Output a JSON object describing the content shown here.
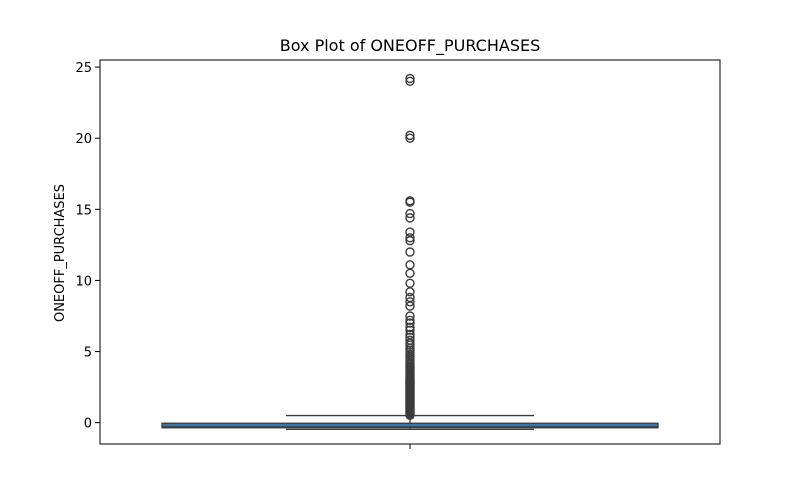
{
  "chart_data": {
    "type": "box",
    "title": "Box Plot of ONEOFF_PURCHASES",
    "xlabel": "",
    "ylabel": "ONEOFF_PURCHASES",
    "ylim": [
      -1.5,
      25.5
    ],
    "yticks": [
      0,
      5,
      10,
      15,
      20,
      25
    ],
    "grid": false,
    "box": {
      "q1": -0.36,
      "median": -0.3,
      "q3": -0.04,
      "whisker_low": -0.47,
      "whisker_high": 0.5,
      "fill_color": "#3a75a8",
      "edge_color": "#3c3c3c"
    },
    "outliers": [
      0.52,
      0.58,
      0.64,
      0.7,
      0.76,
      0.82,
      0.88,
      0.94,
      1.0,
      1.06,
      1.12,
      1.18,
      1.24,
      1.3,
      1.36,
      1.42,
      1.48,
      1.54,
      1.6,
      1.66,
      1.72,
      1.78,
      1.84,
      1.9,
      1.96,
      2.02,
      2.08,
      2.14,
      2.2,
      2.26,
      2.32,
      2.38,
      2.44,
      2.5,
      2.56,
      2.62,
      2.68,
      2.74,
      2.8,
      2.86,
      2.92,
      2.98,
      3.04,
      3.1,
      3.2,
      3.3,
      3.4,
      3.5,
      3.6,
      3.7,
      3.8,
      3.9,
      4.0,
      4.1,
      4.2,
      4.35,
      4.5,
      4.65,
      4.8,
      4.95,
      5.1,
      5.25,
      5.45,
      5.6,
      5.8,
      6.0,
      6.2,
      6.5,
      6.7,
      7.0,
      7.2,
      7.5,
      8.2,
      8.5,
      8.8,
      9.2,
      9.8,
      10.5,
      11.1,
      12.0,
      12.8,
      13.0,
      13.4,
      14.4,
      14.7,
      15.5,
      15.6,
      20.0,
      20.2,
      24.0,
      24.2
    ]
  }
}
